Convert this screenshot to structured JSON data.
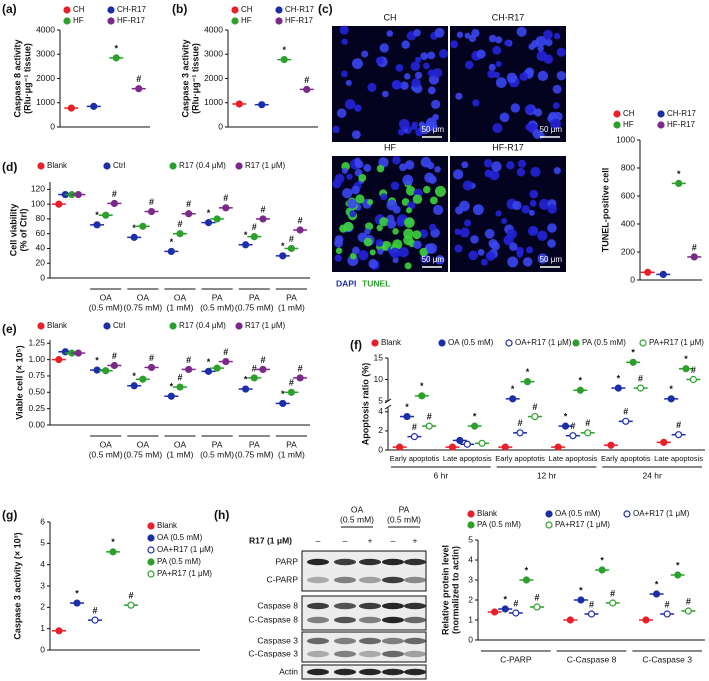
{
  "panel_labels": [
    "(a)",
    "(b)",
    "(c)",
    "(d)",
    "(e)",
    "(f)",
    "(g)",
    "(h)"
  ],
  "microscopy": {
    "tiles": [
      "CH",
      "CH-R17",
      "HF",
      "HF-R17"
    ],
    "scale_bar": "50 μm",
    "stains": [
      "DAPI",
      "TUNEL"
    ]
  },
  "blot": {
    "treatments": [
      "OA",
      "PA"
    ],
    "treatment_notes": [
      "(0.5 mM)",
      "(0.5 mM)"
    ],
    "r17_label": "R17 (1 μM)",
    "r17_signs": [
      "–",
      "–",
      "+",
      "–",
      "+"
    ],
    "rows": [
      "PARP",
      "C-PARP",
      "Caspase 8",
      "C-Caspase 8",
      "Caspase 3",
      "C-Caspase 3",
      "Actin"
    ]
  },
  "chart_data": [
    {
      "type": "dot",
      "ylabel": [
        "Caspase 8 activity",
        "(Rlu·μg⁻¹ tissue)"
      ],
      "ylim": [
        0,
        4000
      ],
      "yticks": [
        0,
        1000,
        2000,
        3000,
        4000
      ],
      "series": [
        {
          "name": "CH",
          "color": "#e8202a",
          "values": [
            780
          ]
        },
        {
          "name": "CH-R17",
          "color": "#1c2fa8",
          "values": [
            850
          ]
        },
        {
          "name": "HF",
          "color": "#2ca02c",
          "values": [
            2850
          ],
          "annotations": [
            "*"
          ]
        },
        {
          "name": "HF-R17",
          "color": "#7b2a8a",
          "values": [
            1580
          ],
          "annotations": [
            "#"
          ]
        }
      ]
    },
    {
      "type": "dot",
      "ylabel": [
        "Caspase 3 activity",
        "(Rlu·μg⁻¹ tissue)"
      ],
      "ylim": [
        0,
        4000
      ],
      "yticks": [
        0,
        1000,
        2000,
        3000,
        4000
      ],
      "series": [
        {
          "name": "CH",
          "color": "#e8202a",
          "values": [
            950
          ]
        },
        {
          "name": "CH-R17",
          "color": "#1c2fa8",
          "values": [
            920
          ]
        },
        {
          "name": "HF",
          "color": "#2ca02c",
          "values": [
            2780
          ],
          "annotations": [
            "*"
          ]
        },
        {
          "name": "HF-R17",
          "color": "#7b2a8a",
          "values": [
            1550
          ],
          "annotations": [
            "#"
          ]
        }
      ]
    },
    {
      "type": "dot",
      "ylabel": [
        "TUNEL-positive cell"
      ],
      "ylim": [
        0,
        1000
      ],
      "yticks": [
        0,
        200,
        400,
        600,
        800,
        1000
      ],
      "series": [
        {
          "name": "CH",
          "color": "#e8202a",
          "values": [
            55
          ]
        },
        {
          "name": "CH-R17",
          "color": "#1c2fa8",
          "values": [
            40
          ]
        },
        {
          "name": "HF",
          "color": "#2ca02c",
          "values": [
            690
          ],
          "annotations": [
            "*"
          ]
        },
        {
          "name": "HF-R17",
          "color": "#7b2a8a",
          "values": [
            165
          ],
          "annotations": [
            "#"
          ]
        }
      ]
    },
    {
      "type": "grouped-dot",
      "ylabel": [
        "Cell viability",
        "(% of Ctrl)"
      ],
      "ylim": [
        0,
        130
      ],
      "yticks": [
        0,
        20,
        40,
        60,
        80,
        100,
        120
      ],
      "categories": [
        null,
        "OA",
        "OA",
        "OA",
        "PA",
        "PA",
        "PA"
      ],
      "category_notes": [
        null,
        "(0.5 mM)",
        "(0.75 mM)",
        "(1 mM)",
        "(0.5 mM)",
        "(0.75 mM)",
        "(1 mM)"
      ],
      "series": [
        {
          "name": "Blank",
          "color": "#e8202a",
          "values": [
            100,
            null,
            null,
            null,
            null,
            null,
            null
          ]
        },
        {
          "name": "Ctrl",
          "color": "#1c2fa8",
          "values": [
            113,
            72,
            55,
            36,
            75,
            45,
            30
          ],
          "annotations": [
            null,
            "*",
            "*",
            "*",
            "*",
            "*",
            "*"
          ]
        },
        {
          "name": "R17 (0.4 μM)",
          "color": "#2ca02c",
          "values": [
            113,
            85,
            70,
            60,
            80,
            56,
            40
          ],
          "annotations": [
            null,
            null,
            null,
            "#",
            null,
            "#",
            "#"
          ]
        },
        {
          "name": "R17 (1 μM)",
          "color": "#7b2a8a",
          "values": [
            113,
            101,
            90,
            87,
            95,
            80,
            65
          ],
          "annotations": [
            null,
            "#",
            "#",
            "#",
            "#",
            "#",
            "#"
          ]
        }
      ]
    },
    {
      "type": "grouped-dot",
      "ylabel": [
        "Viable cell (× 10⁵)"
      ],
      "ylim": [
        0,
        1.3
      ],
      "yticks": [
        {
          "value": 0,
          "label": "0.00"
        },
        {
          "value": 0.25,
          "label": "0.25"
        },
        {
          "value": 0.5,
          "label": "0.50"
        },
        {
          "value": 0.75,
          "label": "0.75"
        },
        {
          "value": 1,
          "label": "1.00"
        },
        {
          "value": 1.25,
          "label": "1.25"
        }
      ],
      "categories": [
        null,
        "OA",
        "OA",
        "OA",
        "PA",
        "PA",
        "PA"
      ],
      "category_notes": [
        null,
        "(0.5 mM)",
        "(0.75 mM)",
        "(1 mM)",
        "(0.5 mM)",
        "(0.75 mM)",
        "(1 mM)"
      ],
      "series": [
        {
          "name": "Blank",
          "color": "#e8202a",
          "values": [
            1.0,
            null,
            null,
            null,
            null,
            null,
            null
          ]
        },
        {
          "name": "Ctrl",
          "color": "#1c2fa8",
          "values": [
            1.12,
            0.84,
            0.6,
            0.44,
            0.82,
            0.55,
            0.33
          ],
          "annotations": [
            null,
            "*",
            "*",
            "*",
            "*",
            "*",
            "*"
          ]
        },
        {
          "name": "R17 (0.4 μM)",
          "color": "#2ca02c",
          "values": [
            1.1,
            0.83,
            0.7,
            0.58,
            0.87,
            0.72,
            0.5
          ],
          "annotations": [
            null,
            null,
            null,
            "#",
            null,
            "#",
            "#"
          ]
        },
        {
          "name": "R17 (1 μM)",
          "color": "#7b2a8a",
          "values": [
            1.1,
            0.91,
            0.88,
            0.85,
            0.97,
            0.85,
            0.72
          ],
          "annotations": [
            null,
            "#",
            "#",
            "#",
            "#",
            "#",
            "#"
          ]
        }
      ]
    },
    {
      "type": "grouped-dot",
      "ylabel": [
        "Apoptosis ratio (%)"
      ],
      "ylim": [
        0,
        15
      ],
      "ybreak": [
        4.5,
        5
      ],
      "yticks": [
        0,
        2,
        4,
        5,
        10,
        15
      ],
      "categories": [
        "Early apoptotis",
        "Late apoptosis",
        "Early apoptotis",
        "Late apoptosis",
        "Early apoptotis",
        "Late apoptosis"
      ],
      "group_labels": [
        "6 hr",
        "12 hr",
        "24 hr"
      ],
      "series": [
        {
          "name": "Blank",
          "color": "#e8202a",
          "values": [
            0.3,
            0.3,
            0.3,
            0.3,
            0.5,
            0.8
          ]
        },
        {
          "name": "OA (0.5 mM)",
          "color": "#1c2fa8",
          "values": [
            3.5,
            1.0,
            5.5,
            2.5,
            8,
            5.5
          ],
          "annotations": [
            "*",
            null,
            "*",
            "*",
            "*",
            "*"
          ]
        },
        {
          "name": "OA+R17 (1 μM)",
          "color": "#1c2fa8",
          "marker": "open",
          "values": [
            1.4,
            0.6,
            1.8,
            1.5,
            3,
            1.6
          ],
          "annotations": [
            "#",
            null,
            "#",
            "#",
            "#",
            "#"
          ]
        },
        {
          "name": "PA (0.5 mM)",
          "color": "#2ca02c",
          "values": [
            6.2,
            2.5,
            9.5,
            7.5,
            14,
            12.5
          ],
          "annotations": [
            "*",
            "*",
            "*",
            "*",
            "*",
            "*"
          ]
        },
        {
          "name": "PA+R17 (1 μM)",
          "color": "#2ca02c",
          "marker": "open",
          "values": [
            2.5,
            0.7,
            3.5,
            1.8,
            8,
            10
          ],
          "annotations": [
            "#",
            null,
            "#",
            "#",
            "#",
            "#"
          ]
        }
      ]
    },
    {
      "type": "dot",
      "ylabel": [
        "Caspase 3 activity (× 10³)"
      ],
      "ylim": [
        0,
        6
      ],
      "yticks": [
        0,
        1,
        2,
        3,
        4,
        5,
        6
      ],
      "series": [
        {
          "name": "Blank",
          "color": "#e8202a",
          "values": [
            0.9
          ]
        },
        {
          "name": "OA (0.5 mM)",
          "color": "#1c2fa8",
          "values": [
            2.2
          ],
          "annotations": [
            "*"
          ]
        },
        {
          "name": "OA+R17 (1 μM)",
          "color": "#1c2fa8",
          "marker": "open",
          "values": [
            1.4
          ],
          "annotations": [
            "#"
          ]
        },
        {
          "name": "PA (0.5 mM)",
          "color": "#2ca02c",
          "values": [
            4.6
          ],
          "annotations": [
            "*"
          ]
        },
        {
          "name": "PA+R17 (1 μM)",
          "color": "#2ca02c",
          "marker": "open",
          "values": [
            2.1
          ],
          "annotations": [
            "#"
          ]
        }
      ]
    },
    {
      "type": "grouped-dot",
      "ylabel": [
        "Relative protein level",
        "(normalized to actin)"
      ],
      "ylim": [
        0,
        5
      ],
      "yticks": [
        0,
        1,
        2,
        3,
        4,
        5
      ],
      "categories": [
        "C-PARP",
        "C-Caspase 8",
        "C-Caspase 3"
      ],
      "series": [
        {
          "name": "Blank",
          "color": "#e8202a",
          "values": [
            1.4,
            1.0,
            1.0
          ]
        },
        {
          "name": "OA (0.5 mM)",
          "color": "#1c2fa8",
          "values": [
            1.55,
            2.0,
            2.3
          ],
          "annotations": [
            "*",
            "*",
            "*"
          ]
        },
        {
          "name": "OA+R17 (1 μM)",
          "color": "#1c2fa8",
          "marker": "open",
          "values": [
            1.35,
            1.3,
            1.3
          ],
          "annotations": [
            "#",
            "#",
            "#"
          ]
        },
        {
          "name": "PA (0.5 mM)",
          "color": "#2ca02c",
          "values": [
            3.0,
            3.5,
            3.25
          ],
          "annotations": [
            "*",
            "*",
            "*"
          ]
        },
        {
          "name": "PA+R17 (1 μM)",
          "color": "#2ca02c",
          "marker": "open",
          "values": [
            1.65,
            1.85,
            1.45
          ],
          "annotations": [
            "#",
            "#",
            "#"
          ]
        }
      ]
    }
  ]
}
